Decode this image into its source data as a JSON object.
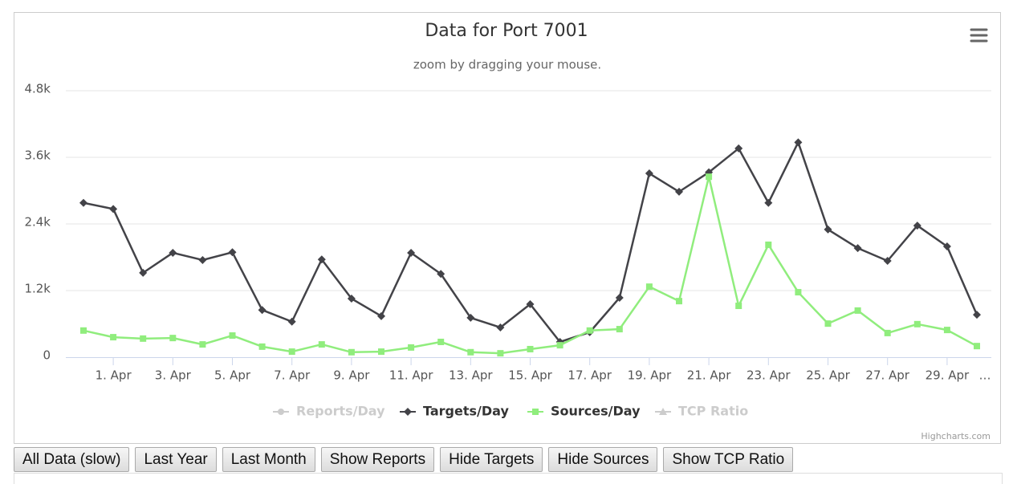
{
  "chart_data": {
    "type": "line",
    "title": "Data for Port 7001",
    "subtitle": "zoom by dragging your mouse.",
    "credit": "Highcharts.com",
    "categories": [
      null,
      "1. Apr",
      null,
      "3. Apr",
      null,
      "5. Apr",
      null,
      "7. Apr",
      null,
      "9. Apr",
      null,
      "11. Apr",
      null,
      "13. Apr",
      null,
      "15. Apr",
      null,
      "17. Apr",
      null,
      "19. Apr",
      null,
      "21. Apr",
      null,
      "23. Apr",
      null,
      "25. Apr",
      null,
      "27. Apr",
      null,
      "29. Apr",
      null,
      "…"
    ],
    "ylim": [
      0,
      4800
    ],
    "yticks": [
      0,
      {
        "value": 1200,
        "label": "1.2k"
      },
      {
        "value": 2400,
        "label": "2.4k"
      },
      {
        "value": 3600,
        "label": "3.6k"
      },
      {
        "value": 4800,
        "label": "4.8k"
      }
    ],
    "grid": true,
    "legend": "bottom",
    "series": [
      {
        "name": "Reports/Day",
        "color": "#cccccc",
        "marker": "circle",
        "visible": false
      },
      {
        "name": "Targets/Day",
        "color": "#434348",
        "marker": "diamond",
        "visible": true,
        "values": [
          2780,
          2670,
          1520,
          1880,
          1750,
          1890,
          850,
          640,
          1760,
          1055,
          740,
          1880,
          1500,
          710,
          535,
          955,
          275,
          450,
          1070,
          3310,
          2980,
          3330,
          3760,
          2780,
          3870,
          2300,
          1965,
          1735,
          2370,
          1995,
          765,
          null
        ]
      },
      {
        "name": "Sources/Day",
        "color": "#90ed7d",
        "marker": "square",
        "visible": true,
        "values": [
          480,
          360,
          335,
          345,
          230,
          390,
          190,
          100,
          230,
          90,
          100,
          175,
          275,
          90,
          70,
          145,
          215,
          480,
          505,
          1270,
          1010,
          3250,
          925,
          2025,
          1170,
          605,
          840,
          435,
          595,
          490,
          200,
          null
        ]
      },
      {
        "name": "TCP Ratio",
        "color": "#cccccc",
        "marker": "triangle",
        "visible": false
      }
    ]
  },
  "buttons": [
    "All Data (slow)",
    "Last Year",
    "Last Month",
    "Show Reports",
    "Hide Targets",
    "Hide Sources",
    "Show TCP Ratio"
  ]
}
